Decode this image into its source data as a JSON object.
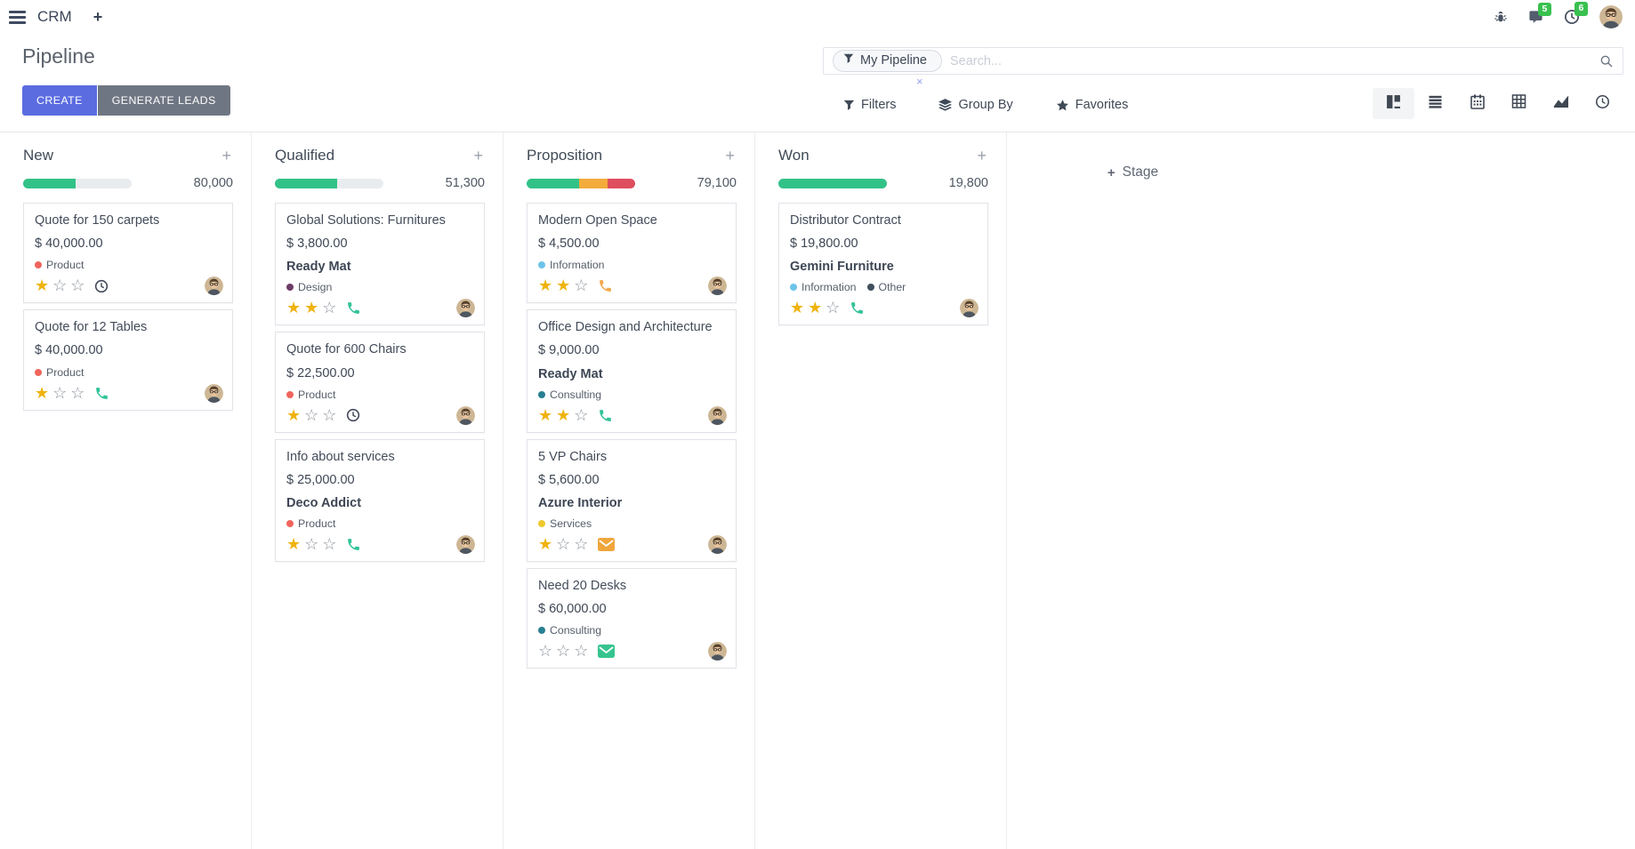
{
  "navbar": {
    "app_name": "CRM",
    "systray": {
      "messages_count": "5",
      "activities_count": "6"
    }
  },
  "control_panel": {
    "title": "Pipeline",
    "buttons": {
      "create": "CREATE",
      "generate_leads": "GENERATE LEADS"
    },
    "search": {
      "facet_label": "My Pipeline",
      "facet_remove_glyph": "×",
      "placeholder": "Search..."
    },
    "menus": {
      "filters": "Filters",
      "group_by": "Group By",
      "favorites": "Favorites"
    },
    "view_switcher": [
      "kanban",
      "list",
      "calendar",
      "pivot",
      "graph",
      "activity"
    ],
    "active_view": "kanban"
  },
  "colors": {
    "accent": "#5b6ce1",
    "secondary_button": "#6f7683",
    "badge_green": "#39c14f",
    "progress_track": "#e9ecef",
    "star_filled": "#efb30d",
    "star_empty": "#8a9199"
  },
  "board": {
    "add_stage": {
      "label": "Stage",
      "plus_glyph": "+"
    },
    "columns": [
      {
        "name": "New",
        "total": "80,000",
        "progress": [
          {
            "color": "#32c287",
            "pct": 48
          }
        ],
        "cards": [
          {
            "title": "Quote for 150 carpets",
            "amount": "$ 40,000.00",
            "partner": "",
            "tags": [
              {
                "label": "Product",
                "color": "#ef655c"
              }
            ],
            "stars_filled": 1,
            "stars_total": 3,
            "activity": {
              "icon": "clock-icon",
              "color": "#42495a"
            }
          },
          {
            "title": "Quote for 12 Tables",
            "amount": "$ 40,000.00",
            "partner": "",
            "tags": [
              {
                "label": "Product",
                "color": "#ef655c"
              }
            ],
            "stars_filled": 1,
            "stars_total": 3,
            "activity": {
              "icon": "phone-icon",
              "color": "#32c398"
            }
          }
        ]
      },
      {
        "name": "Qualified",
        "total": "51,300",
        "progress": [
          {
            "color": "#32c287",
            "pct": 57
          }
        ],
        "cards": [
          {
            "title": "Global Solutions: Furnitures",
            "amount": "$ 3,800.00",
            "partner": "Ready Mat",
            "tags": [
              {
                "label": "Design",
                "color": "#6d3c65"
              }
            ],
            "stars_filled": 2,
            "stars_total": 3,
            "activity": {
              "icon": "phone-icon",
              "color": "#32c398"
            }
          },
          {
            "title": "Quote for 600 Chairs",
            "amount": "$ 22,500.00",
            "partner": "",
            "tags": [
              {
                "label": "Product",
                "color": "#ef655c"
              }
            ],
            "stars_filled": 1,
            "stars_total": 3,
            "activity": {
              "icon": "clock-icon",
              "color": "#42495a"
            }
          },
          {
            "title": "Info about services",
            "amount": "$ 25,000.00",
            "partner": "Deco Addict",
            "tags": [
              {
                "label": "Product",
                "color": "#ef655c"
              }
            ],
            "stars_filled": 1,
            "stars_total": 3,
            "activity": {
              "icon": "phone-icon",
              "color": "#32c398"
            }
          }
        ]
      },
      {
        "name": "Proposition",
        "total": "79,100",
        "progress": [
          {
            "color": "#32c287",
            "pct": 48
          },
          {
            "color": "#f3ab3c",
            "pct": 27
          },
          {
            "color": "#df4e5e",
            "pct": 25
          }
        ],
        "cards": [
          {
            "title": "Modern Open Space",
            "amount": "$ 4,500.00",
            "partner": "",
            "tags": [
              {
                "label": "Information",
                "color": "#6ec3e9"
              }
            ],
            "stars_filled": 2,
            "stars_total": 3,
            "activity": {
              "icon": "phone-icon",
              "color": "#f2a84b"
            }
          },
          {
            "title": "Office Design and Architecture",
            "amount": "$ 9,000.00",
            "partner": "Ready Mat",
            "tags": [
              {
                "label": "Consulting",
                "color": "#277f92"
              }
            ],
            "stars_filled": 2,
            "stars_total": 3,
            "activity": {
              "icon": "phone-icon",
              "color": "#32c398"
            }
          },
          {
            "title": "5 VP Chairs",
            "amount": "$ 5,600.00",
            "partner": "Azure Interior",
            "tags": [
              {
                "label": "Services",
                "color": "#eec82f"
              }
            ],
            "stars_filled": 1,
            "stars_total": 3,
            "activity": {
              "icon": "envelope-icon",
              "color": "#f0a63c"
            }
          },
          {
            "title": "Need 20 Desks",
            "amount": "$ 60,000.00",
            "partner": "",
            "tags": [
              {
                "label": "Consulting",
                "color": "#277f92"
              }
            ],
            "stars_filled": 0,
            "stars_total": 3,
            "activity": {
              "icon": "envelope-icon",
              "color": "#36c48e"
            }
          }
        ]
      },
      {
        "name": "Won",
        "total": "19,800",
        "progress": [
          {
            "color": "#32c287",
            "pct": 100
          }
        ],
        "cards": [
          {
            "title": "Distributor Contract",
            "amount": "$ 19,800.00",
            "partner": "Gemini Furniture",
            "tags": [
              {
                "label": "Information",
                "color": "#6ec3e9"
              },
              {
                "label": "Other",
                "color": "#41505e"
              }
            ],
            "stars_filled": 2,
            "stars_total": 3,
            "activity": {
              "icon": "phone-icon",
              "color": "#32c398"
            }
          }
        ]
      }
    ]
  }
}
